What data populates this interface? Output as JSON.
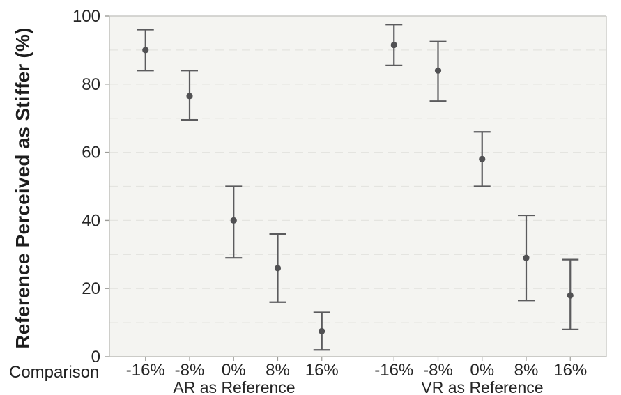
{
  "chart_data": {
    "type": "scatter",
    "subtype": "mean-with-error-bars",
    "title": "",
    "ylabel": "Reference Perceived as Stiffer (%)",
    "xlabel": "Comparison",
    "ylim": [
      0,
      100
    ],
    "yticks": [
      0,
      20,
      40,
      60,
      80,
      100
    ],
    "grid_step": 10,
    "grid": "horizontal-dashed",
    "legend": "none",
    "groups": [
      {
        "label": "AR as Reference",
        "categories": [
          "-16%",
          "-8%",
          "0%",
          "8%",
          "16%"
        ],
        "points": [
          {
            "category": "-16%",
            "mean": 90,
            "ci_low": 84,
            "ci_high": 96
          },
          {
            "category": "-8%",
            "mean": 76.5,
            "ci_low": 69.5,
            "ci_high": 84
          },
          {
            "category": "0%",
            "mean": 40,
            "ci_low": 29,
            "ci_high": 50
          },
          {
            "category": "8%",
            "mean": 26,
            "ci_low": 16,
            "ci_high": 36
          },
          {
            "category": "16%",
            "mean": 7.5,
            "ci_low": 2,
            "ci_high": 13
          }
        ]
      },
      {
        "label": "VR as Reference",
        "categories": [
          "-16%",
          "-8%",
          "0%",
          "8%",
          "16%"
        ],
        "points": [
          {
            "category": "-16%",
            "mean": 91.5,
            "ci_low": 85.5,
            "ci_high": 97.5
          },
          {
            "category": "-8%",
            "mean": 84,
            "ci_low": 75,
            "ci_high": 92.5
          },
          {
            "category": "0%",
            "mean": 58,
            "ci_low": 50,
            "ci_high": 66
          },
          {
            "category": "8%",
            "mean": 29,
            "ci_low": 16.5,
            "ci_high": 41.5
          },
          {
            "category": "16%",
            "mean": 18,
            "ci_low": 8,
            "ci_high": 28.5
          }
        ]
      }
    ],
    "colors": {
      "marker": "#515153",
      "error_bar": "#5b5b5d",
      "plot_background": "#f4f4f1",
      "gridline": "#e4e4e0",
      "frame": "#c9c9c5",
      "axis_line": "#bdbdb9",
      "tick": "#9b9b97",
      "text": "#262626"
    }
  }
}
